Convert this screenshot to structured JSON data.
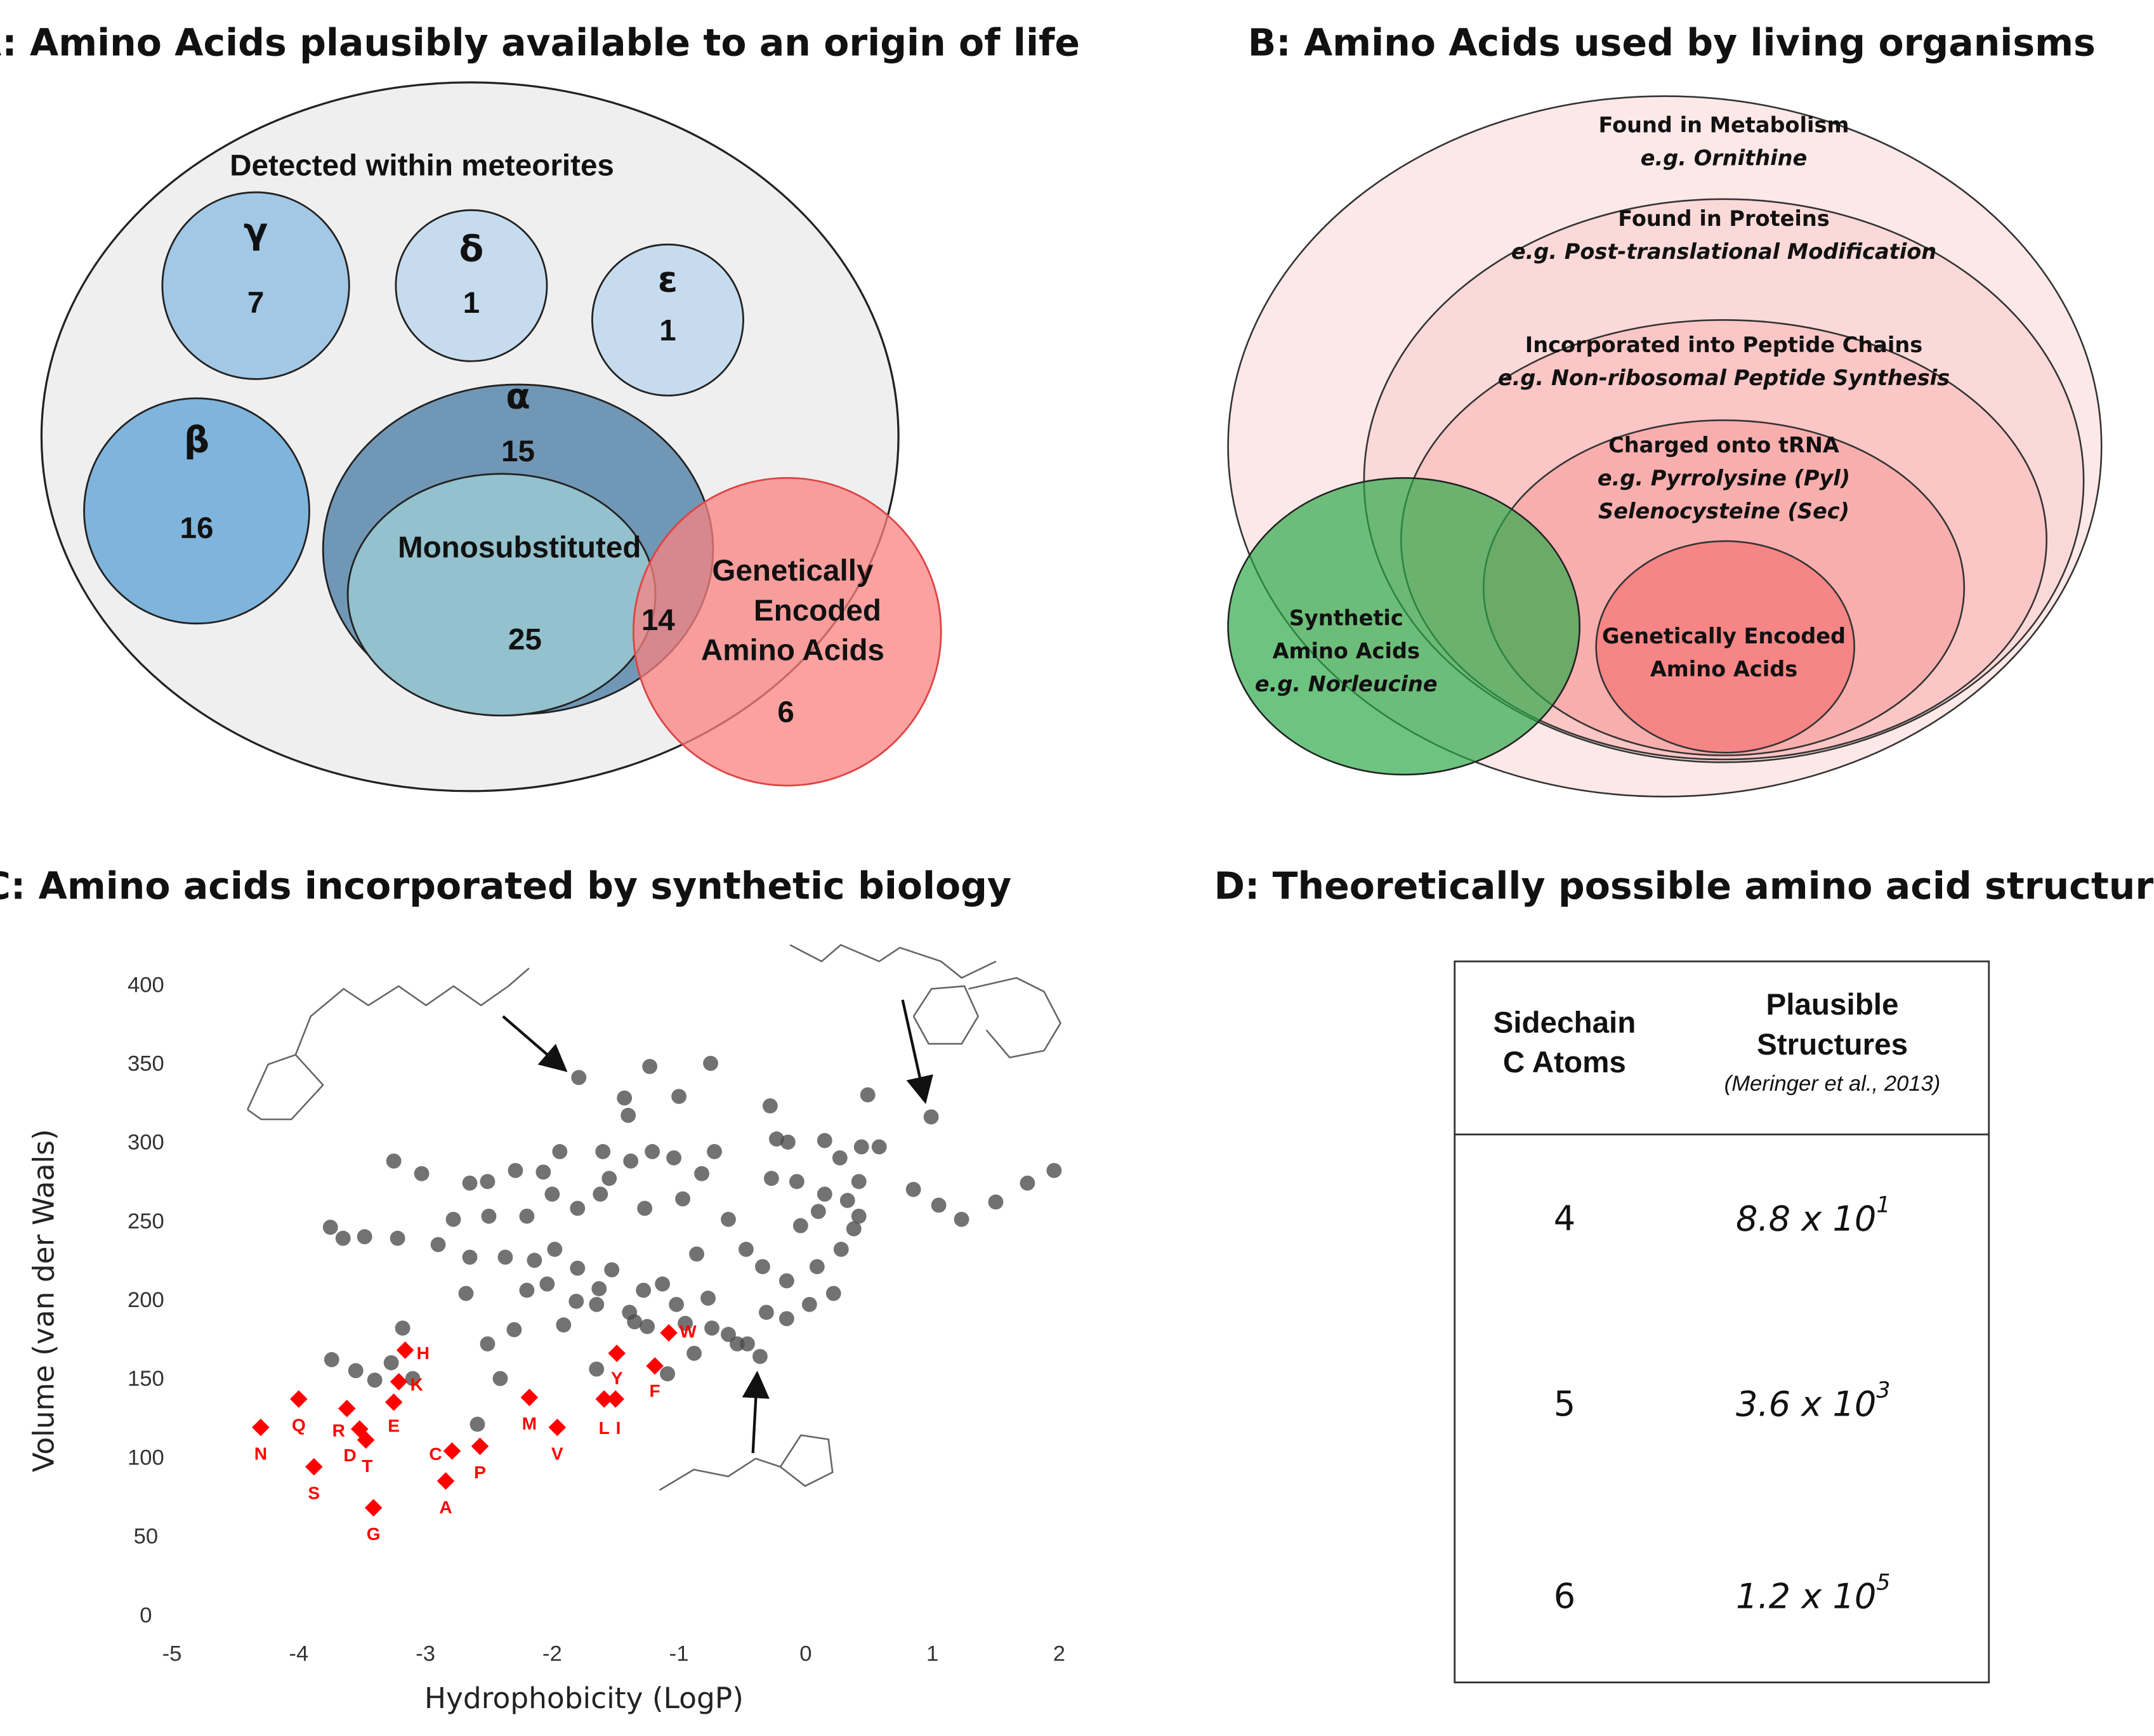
{
  "panel_a": {
    "title": "A: Amino Acids plausibly available to an origin of life",
    "outer_label": "Detected within meteorites",
    "sets": [
      {
        "label": [
          "γ"
        ],
        "count": 7
      },
      {
        "label": [
          "δ"
        ],
        "count": 1
      },
      {
        "label": [
          "ε"
        ],
        "count": 1
      },
      {
        "label": [
          "β"
        ],
        "count": 16
      },
      {
        "label": [
          "α"
        ],
        "count": 15
      },
      {
        "label": [
          "Monosubstituted"
        ],
        "count": 25
      },
      {
        "label": [
          "Genetically",
          "Encoded",
          "Amino Acids"
        ],
        "count": 6
      }
    ],
    "overlap_count": 14
  },
  "panel_b": {
    "title": "B: Amino Acids used by living organisms",
    "sets": [
      {
        "label": [
          "Found in Metabolism"
        ],
        "example": [
          "e.g. Ornithine"
        ]
      },
      {
        "label": [
          "Found in Proteins"
        ],
        "example": [
          "e.g. Post-translational Modification"
        ]
      },
      {
        "label": [
          "Incorporated into Peptide Chains"
        ],
        "example": [
          "e.g. Non-ribosomal Peptide Synthesis"
        ]
      },
      {
        "label": [
          "Charged onto tRNA"
        ],
        "example": [
          "e.g. Pyrrolysine (Pyl)",
          "Selenocysteine (Sec)"
        ]
      },
      {
        "label": [
          "Genetically Encoded",
          "Amino Acids"
        ],
        "example": []
      }
    ],
    "synthetic": {
      "label": [
        "Synthetic",
        "Amino Acids"
      ],
      "example": [
        "e.g. Norleucine"
      ]
    }
  },
  "chart_data": {
    "type": "scatter",
    "title": "C: Amino acids incorporated by synthetic biology",
    "x_label": "Hydrophobicity (LogP)",
    "y_label": "Volume (van der Waals)",
    "xlim": [
      -5,
      2
    ],
    "xticks": [
      -5,
      -4,
      -3,
      -2,
      -1,
      0,
      1,
      2
    ],
    "ylim": [
      0,
      400
    ],
    "yticks": [
      0,
      50,
      100,
      150,
      200,
      250,
      300,
      350,
      400
    ],
    "series": [
      {
        "color": "#4a4a4a",
        "x": [
          -1.79,
          -1.23,
          -0.75,
          0.99,
          -0.28,
          0.49,
          -1.43,
          -1.4,
          -1.0,
          -3.25,
          -3.03,
          -3.75,
          -3.48,
          -3.65,
          -3.22,
          -2.9,
          -2.65,
          -2.51,
          -2.29,
          -2.07,
          -1.94,
          -1.6,
          -1.55,
          -1.38,
          -1.21,
          -1.04,
          -0.82,
          -0.72,
          -0.23,
          -0.14,
          0.15,
          0.27,
          0.44,
          0.58,
          0.85,
          1.05,
          1.23,
          1.5,
          1.75,
          1.96,
          -2.78,
          -2.5,
          -2.2,
          -2.0,
          -1.8,
          -1.62,
          -1.27,
          -0.97,
          -0.61,
          -0.27,
          -0.07,
          0.1,
          0.33,
          0.42,
          0.15,
          0.42,
          -2.68,
          -2.65,
          -2.37,
          -2.14,
          -2.04,
          -1.98,
          -1.91,
          -1.81,
          -1.8,
          -1.65,
          -1.63,
          -1.53,
          -1.39,
          -1.35,
          -1.25,
          -1.28,
          -1.13,
          -1.02,
          -0.95,
          -0.88,
          -0.74,
          -0.61,
          -0.54,
          -0.46,
          -0.31,
          -0.15,
          -0.15,
          0.03,
          0.09,
          0.22,
          0.28,
          0.38,
          -0.77,
          -0.47,
          -0.34,
          -0.86,
          -2.3,
          -2.2,
          -2.51,
          -2.41,
          -2.59,
          -3.1,
          -3.27,
          -3.18,
          -3.4,
          -3.55,
          -3.74,
          -1.65,
          -0.36,
          -1.09,
          -0.04
        ],
        "y": [
          342,
          349,
          351,
          317,
          324,
          331,
          329,
          318,
          330,
          289,
          281,
          247,
          241,
          240,
          240,
          236,
          275,
          276,
          283,
          282,
          295,
          295,
          278,
          289,
          295,
          291,
          281,
          295,
          303,
          301,
          302,
          291,
          298,
          298,
          271,
          261,
          252,
          263,
          275,
          283,
          252,
          254,
          254,
          268,
          259,
          268,
          259,
          265,
          252,
          278,
          276,
          257,
          264,
          254,
          268,
          276,
          205,
          228,
          228,
          226,
          211,
          233,
          185,
          200,
          221,
          198,
          208,
          220,
          193,
          187,
          184,
          207,
          211,
          198,
          186,
          167,
          183,
          179,
          173,
          173,
          193,
          189,
          213,
          198,
          222,
          205,
          233,
          246,
          202,
          233,
          222,
          230,
          182,
          207,
          173,
          151,
          122,
          151,
          161,
          183,
          150,
          156,
          163,
          157,
          165,
          154,
          248
        ]
      },
      {
        "color": "#ff0000",
        "labels": [
          "N",
          "Q",
          "S",
          "R",
          "D",
          "T",
          "G",
          "E",
          "K",
          "H",
          "C",
          "A",
          "P",
          "M",
          "V",
          "L",
          "I",
          "Y",
          "F",
          "W"
        ],
        "x": [
          -4.3,
          -4.0,
          -3.88,
          -3.62,
          -3.52,
          -3.47,
          -3.41,
          -3.25,
          -3.21,
          -3.16,
          -2.79,
          -2.84,
          -2.57,
          -2.18,
          -1.96,
          -1.59,
          -1.5,
          -1.49,
          -1.19,
          -1.08
        ],
        "y": [
          120,
          138,
          95,
          132,
          119,
          112,
          69,
          136,
          149,
          169,
          105,
          86,
          108,
          139,
          120,
          138,
          138,
          167,
          159,
          180
        ]
      }
    ]
  },
  "panel_d": {
    "title": "D: Theoretically possible amino acid structures",
    "header": [
      [
        "Sidechain",
        "C Atoms"
      ],
      [
        "Plausible",
        "Structures"
      ]
    ],
    "citation": "(Meringer et al., 2013)",
    "rows": [
      {
        "atoms": 4,
        "mantissa": "8.8 x 10",
        "exponent": 1
      },
      {
        "atoms": 5,
        "mantissa": "3.6 x 10",
        "exponent": 3
      },
      {
        "atoms": 6,
        "mantissa": "1.2 x 10",
        "exponent": 5
      }
    ]
  }
}
